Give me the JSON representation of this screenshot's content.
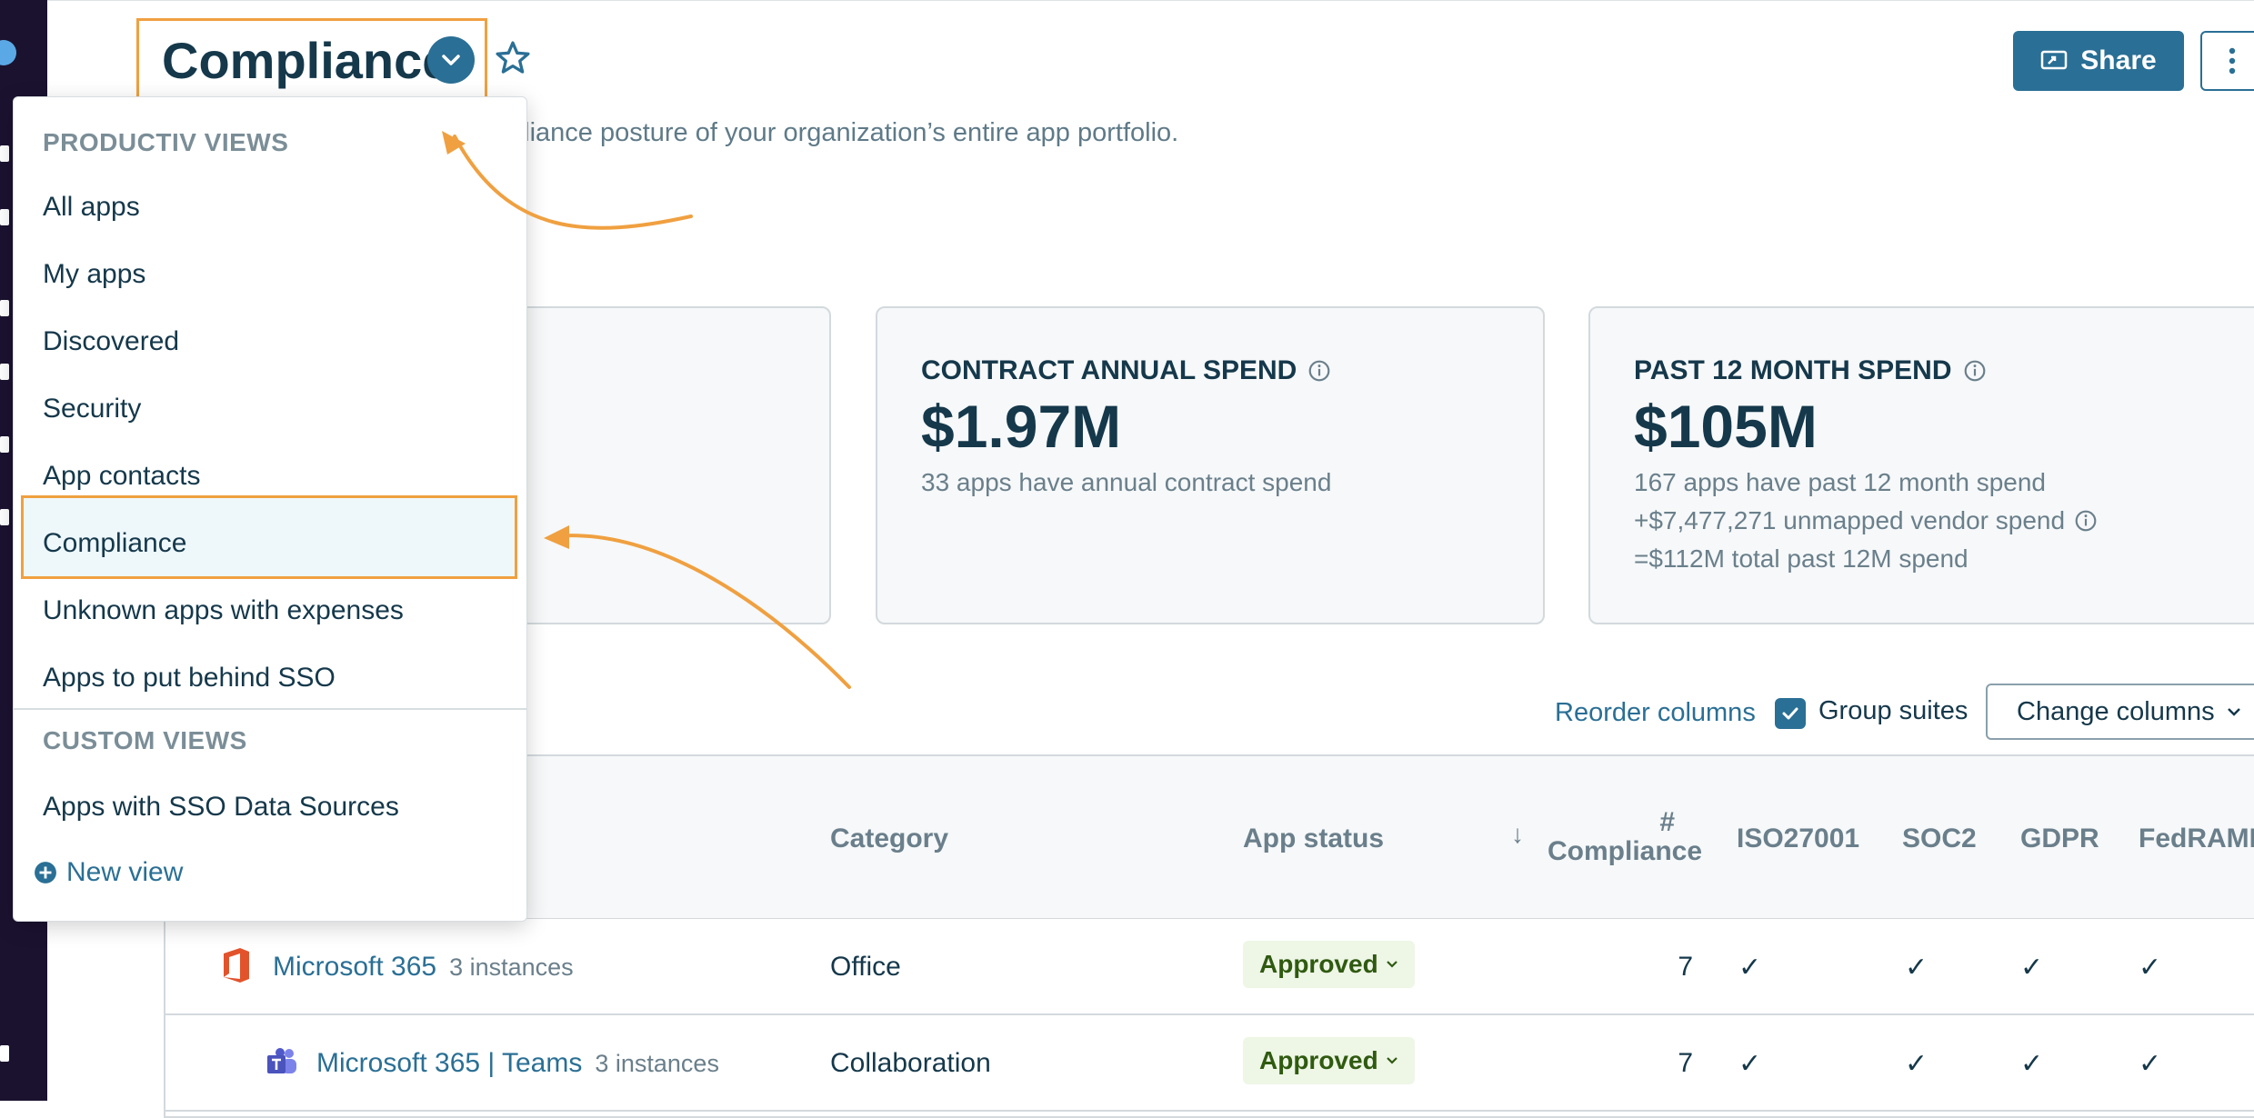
{
  "header": {
    "title": "Compliance",
    "subtitle_visible": "pliance posture of your organization’s entire app portfolio.",
    "share_label": "Share"
  },
  "cards": [
    {
      "label": "CONTRACT ANNUAL SPEND",
      "value": "$1.97M",
      "notes": [
        "33 apps have annual contract spend"
      ]
    },
    {
      "label": "PAST 12 MONTH SPEND",
      "value": "$105M",
      "notes": [
        "167 apps have past 12 month spend",
        "+$7,477,271 unmapped vendor spend",
        "=$112M total past 12M spend"
      ]
    }
  ],
  "toolbar": {
    "reorder_label": "Reorder columns",
    "group_suites_label": "Group suites",
    "group_suites_checked": true,
    "change_columns_label": "Change columns"
  },
  "table": {
    "columns": {
      "category": "Category",
      "app_status": "App status",
      "compliance_line1": "#",
      "compliance_line2": "Compliance",
      "iso": "ISO27001",
      "soc2": "SOC2",
      "gdpr": "GDPR",
      "fedramp": "FedRAMP"
    },
    "rows": [
      {
        "app": "Microsoft 365",
        "instances": "3 instances",
        "category": "Office",
        "status": "Approved",
        "compliance": "7",
        "iso": "✓",
        "soc2": "✓",
        "gdpr": "✓",
        "fedramp": "✓",
        "icon": "microsoft-office-icon"
      },
      {
        "app": "Microsoft 365 | Teams",
        "instances": "3 instances",
        "category": "Collaboration",
        "status": "Approved",
        "compliance": "7",
        "iso": "✓",
        "soc2": "✓",
        "gdpr": "✓",
        "fedramp": "✓",
        "icon": "microsoft-teams-icon"
      }
    ]
  },
  "views_dropdown": {
    "productiv_heading": "PRODUCTIV VIEWS",
    "productiv_items": [
      "All apps",
      "My apps",
      "Discovered",
      "Security",
      "App contacts",
      "Compliance",
      "Unknown apps with expenses",
      "Apps to put behind SSO"
    ],
    "selected": "Compliance",
    "custom_heading": "CUSTOM VIEWS",
    "custom_items": [
      "Apps with SSO Data Sources"
    ],
    "new_view_label": "New view"
  },
  "colors": {
    "accent": "#2a6f95",
    "highlight": "#f0a040",
    "approved_bg": "#eef6e6",
    "approved_text": "#2f5a10"
  }
}
